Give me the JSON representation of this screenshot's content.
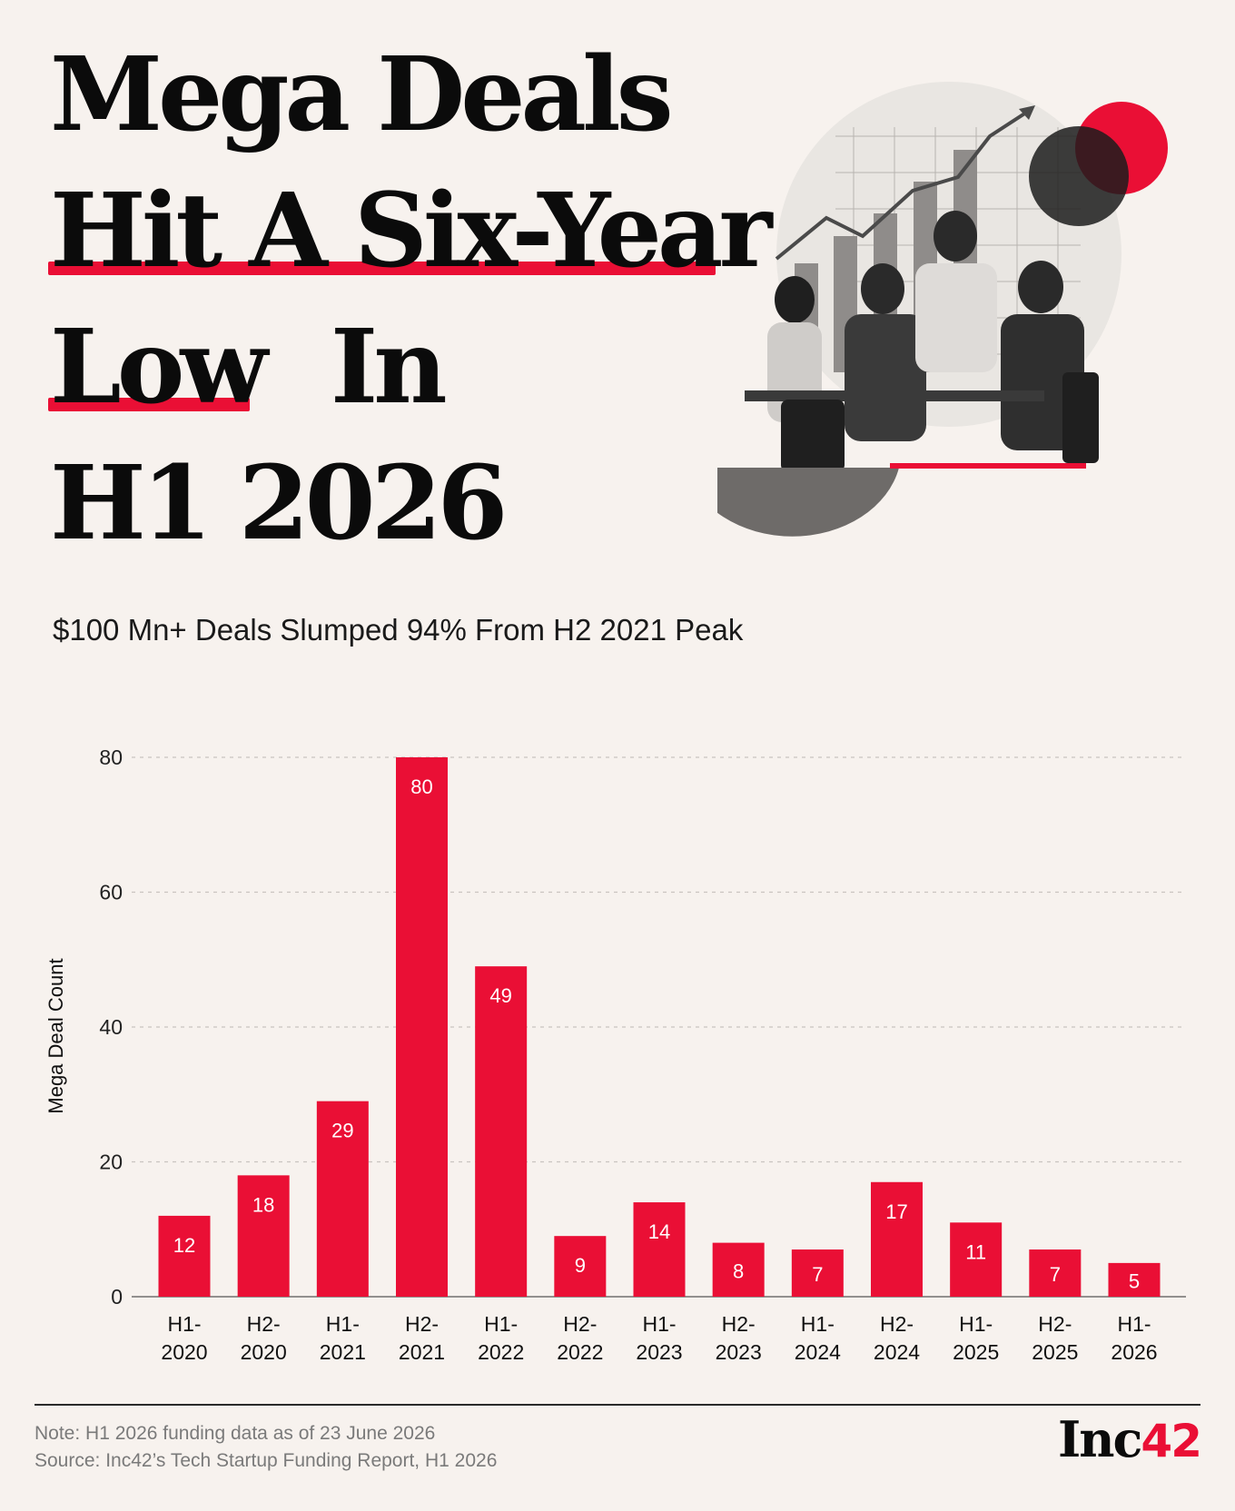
{
  "headline": {
    "line1": "Mega Deals",
    "line2": "Hit A Six-Year",
    "line3a": "Low",
    "line3b": "In",
    "line4": "H1 2026"
  },
  "subtitle": "$100 Mn+ Deals Slumped 94% From H2 2021 Peak",
  "chart_data": {
    "type": "bar",
    "categories": [
      [
        "H1-",
        "2020"
      ],
      [
        "H2-",
        "2020"
      ],
      [
        "H1-",
        "2021"
      ],
      [
        "H2-",
        "2021"
      ],
      [
        "H1-",
        "2022"
      ],
      [
        "H2-",
        "2022"
      ],
      [
        "H1-",
        "2023"
      ],
      [
        "H2-",
        "2023"
      ],
      [
        "H1-",
        "2024"
      ],
      [
        "H2-",
        "2024"
      ],
      [
        "H1-",
        "2025"
      ],
      [
        "H2-",
        "2025"
      ],
      [
        "H1-",
        "2026"
      ]
    ],
    "values": [
      12,
      18,
      29,
      80,
      49,
      9,
      14,
      8,
      7,
      17,
      11,
      7,
      5
    ],
    "ylabel": "Mega Deal Count",
    "xlabel": "",
    "ylim": [
      0,
      80
    ],
    "yticks": [
      0,
      20,
      40,
      60,
      80
    ],
    "grid": "dashed horizontal",
    "bar_color": "#ea0f35",
    "data_labels": "inside-top"
  },
  "footer": {
    "note": "Note: H1 2026 funding data as of 23 June 2026",
    "source": "Source: Inc42’s Tech Startup Funding Report, H1 2026"
  },
  "logo": {
    "text": "Inc",
    "number": "42"
  },
  "colors": {
    "accent": "#ea0f35",
    "background": "#f7f2ee",
    "text": "#111111"
  }
}
